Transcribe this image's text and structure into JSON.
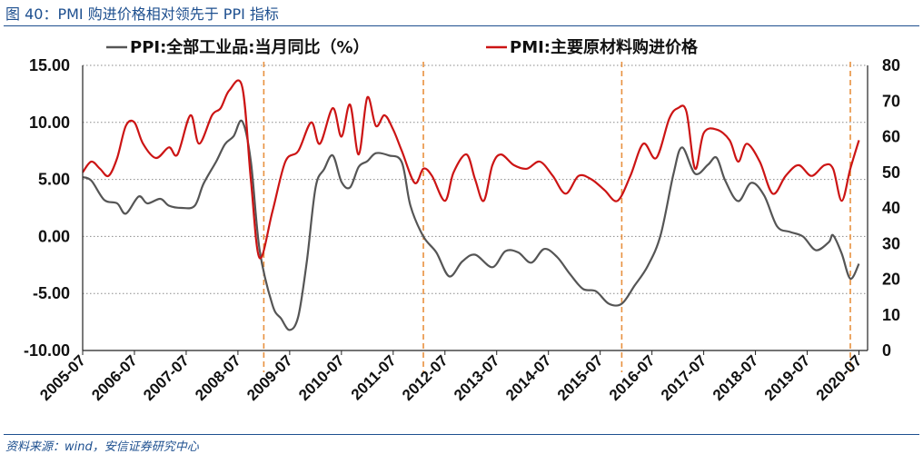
{
  "header": {
    "title": "图 40：PMI 购进价格相对领先于 PPI 指标"
  },
  "footer": {
    "source": "资料来源：wind，安信证券研究中心"
  },
  "chart_data": {
    "type": "line",
    "legend_position": "top",
    "grid": "horizontal dotted",
    "x_tick_labels": [
      "2005-07",
      "2006-07",
      "2007-07",
      "2008-07",
      "2009-07",
      "2010-07",
      "2011-07",
      "2012-07",
      "2013-07",
      "2014-07",
      "2015-07",
      "2016-07",
      "2017-07",
      "2018-07",
      "2019-07",
      "2020-07"
    ],
    "x_range": [
      "2005-07",
      "2020-09"
    ],
    "y_left": {
      "range": [
        -10,
        15
      ],
      "ticks": [
        "-10.00",
        "-5.00",
        "0.00",
        "5.00",
        "10.00",
        "15.00"
      ]
    },
    "y_right": {
      "range": [
        0,
        80
      ],
      "ticks": [
        "0",
        "10",
        "20",
        "30",
        "40",
        "50",
        "60",
        "70",
        "80"
      ]
    },
    "vertical_markers": [
      "2009-01",
      "2012-02",
      "2015-12",
      "2020-05"
    ],
    "series": [
      {
        "name": "PPI:全部工业品:当月同比（%）",
        "axis": "left",
        "color": "#555555",
        "points": [
          [
            "2005-07",
            5.2
          ],
          [
            "2005-09",
            4.9
          ],
          [
            "2005-12",
            3.2
          ],
          [
            "2006-03",
            2.9
          ],
          [
            "2006-05",
            2.0
          ],
          [
            "2006-08",
            3.5
          ],
          [
            "2006-10",
            2.9
          ],
          [
            "2007-01",
            3.3
          ],
          [
            "2007-03",
            2.7
          ],
          [
            "2007-06",
            2.5
          ],
          [
            "2007-09",
            2.7
          ],
          [
            "2007-11",
            4.6
          ],
          [
            "2008-02",
            6.6
          ],
          [
            "2008-04",
            8.1
          ],
          [
            "2008-06",
            8.8
          ],
          [
            "2008-08",
            10.1
          ],
          [
            "2008-10",
            6.6
          ],
          [
            "2008-12",
            -1.1
          ],
          [
            "2009-03",
            -6.0
          ],
          [
            "2009-05",
            -7.2
          ],
          [
            "2009-07",
            -8.2
          ],
          [
            "2009-09",
            -7.0
          ],
          [
            "2009-11",
            -2.1
          ],
          [
            "2010-01",
            4.3
          ],
          [
            "2010-03",
            5.9
          ],
          [
            "2010-05",
            7.1
          ],
          [
            "2010-07",
            4.8
          ],
          [
            "2010-09",
            4.3
          ],
          [
            "2010-11",
            6.1
          ],
          [
            "2011-01",
            6.6
          ],
          [
            "2011-03",
            7.3
          ],
          [
            "2011-06",
            7.1
          ],
          [
            "2011-09",
            6.5
          ],
          [
            "2011-11",
            2.7
          ],
          [
            "2012-02",
            0.0
          ],
          [
            "2012-05",
            -1.4
          ],
          [
            "2012-08",
            -3.5
          ],
          [
            "2012-11",
            -2.2
          ],
          [
            "2013-02",
            -1.6
          ],
          [
            "2013-06",
            -2.7
          ],
          [
            "2013-09",
            -1.3
          ],
          [
            "2013-12",
            -1.4
          ],
          [
            "2014-03",
            -2.3
          ],
          [
            "2014-06",
            -1.1
          ],
          [
            "2014-09",
            -1.8
          ],
          [
            "2014-12",
            -3.3
          ],
          [
            "2015-03",
            -4.6
          ],
          [
            "2015-06",
            -4.8
          ],
          [
            "2015-09",
            -5.9
          ],
          [
            "2015-12",
            -5.9
          ],
          [
            "2016-03",
            -4.3
          ],
          [
            "2016-06",
            -2.6
          ],
          [
            "2016-09",
            0.1
          ],
          [
            "2016-12",
            5.5
          ],
          [
            "2017-02",
            7.8
          ],
          [
            "2017-05",
            5.5
          ],
          [
            "2017-08",
            6.3
          ],
          [
            "2017-10",
            6.9
          ],
          [
            "2017-12",
            4.9
          ],
          [
            "2018-03",
            3.1
          ],
          [
            "2018-06",
            4.7
          ],
          [
            "2018-09",
            3.6
          ],
          [
            "2018-12",
            0.9
          ],
          [
            "2019-03",
            0.4
          ],
          [
            "2019-06",
            0.0
          ],
          [
            "2019-09",
            -1.2
          ],
          [
            "2019-12",
            -0.5
          ],
          [
            "2020-01",
            0.1
          ],
          [
            "2020-03",
            -1.5
          ],
          [
            "2020-05",
            -3.7
          ],
          [
            "2020-07",
            -2.4
          ]
        ]
      },
      {
        "name": "PMI:主要原材料购进价格",
        "axis": "right",
        "color": "#cc1414",
        "points": [
          [
            "2005-07",
            50
          ],
          [
            "2005-09",
            53
          ],
          [
            "2005-11",
            51
          ],
          [
            "2006-01",
            49
          ],
          [
            "2006-03",
            54
          ],
          [
            "2006-05",
            63
          ],
          [
            "2006-07",
            64
          ],
          [
            "2006-09",
            58
          ],
          [
            "2006-12",
            54
          ],
          [
            "2007-03",
            57
          ],
          [
            "2007-05",
            55
          ],
          [
            "2007-08",
            66
          ],
          [
            "2007-10",
            58
          ],
          [
            "2008-01",
            66
          ],
          [
            "2008-03",
            68
          ],
          [
            "2008-05",
            73
          ],
          [
            "2008-08",
            74
          ],
          [
            "2008-10",
            48
          ],
          [
            "2008-12",
            26
          ],
          [
            "2009-03",
            39
          ],
          [
            "2009-06",
            53
          ],
          [
            "2009-09",
            56
          ],
          [
            "2009-12",
            64
          ],
          [
            "2010-02",
            58
          ],
          [
            "2010-05",
            68
          ],
          [
            "2010-07",
            60
          ],
          [
            "2010-09",
            69
          ],
          [
            "2010-11",
            55
          ],
          [
            "2011-01",
            71
          ],
          [
            "2011-03",
            63
          ],
          [
            "2011-05",
            66
          ],
          [
            "2011-07",
            62
          ],
          [
            "2011-09",
            56
          ],
          [
            "2011-12",
            47
          ],
          [
            "2012-02",
            51
          ],
          [
            "2012-04",
            49
          ],
          [
            "2012-07",
            42
          ],
          [
            "2012-09",
            50
          ],
          [
            "2012-12",
            55
          ],
          [
            "2013-02",
            48
          ],
          [
            "2013-04",
            42
          ],
          [
            "2013-06",
            52
          ],
          [
            "2013-08",
            55
          ],
          [
            "2013-11",
            52
          ],
          [
            "2014-02",
            51
          ],
          [
            "2014-05",
            53
          ],
          [
            "2014-08",
            49
          ],
          [
            "2014-11",
            44
          ],
          [
            "2015-02",
            49
          ],
          [
            "2015-05",
            48
          ],
          [
            "2015-08",
            45
          ],
          [
            "2015-11",
            42
          ],
          [
            "2016-02",
            49
          ],
          [
            "2016-05",
            58
          ],
          [
            "2016-08",
            54
          ],
          [
            "2016-11",
            65
          ],
          [
            "2017-01",
            68
          ],
          [
            "2017-03",
            67
          ],
          [
            "2017-05",
            51
          ],
          [
            "2017-07",
            61
          ],
          [
            "2017-10",
            62
          ],
          [
            "2018-01",
            59
          ],
          [
            "2018-03",
            53
          ],
          [
            "2018-05",
            58
          ],
          [
            "2018-08",
            53
          ],
          [
            "2018-11",
            44
          ],
          [
            "2019-02",
            49
          ],
          [
            "2019-05",
            52
          ],
          [
            "2019-08",
            49
          ],
          [
            "2019-11",
            52
          ],
          [
            "2020-01",
            51
          ],
          [
            "2020-03",
            42
          ],
          [
            "2020-05",
            51
          ],
          [
            "2020-07",
            59
          ]
        ]
      }
    ]
  }
}
